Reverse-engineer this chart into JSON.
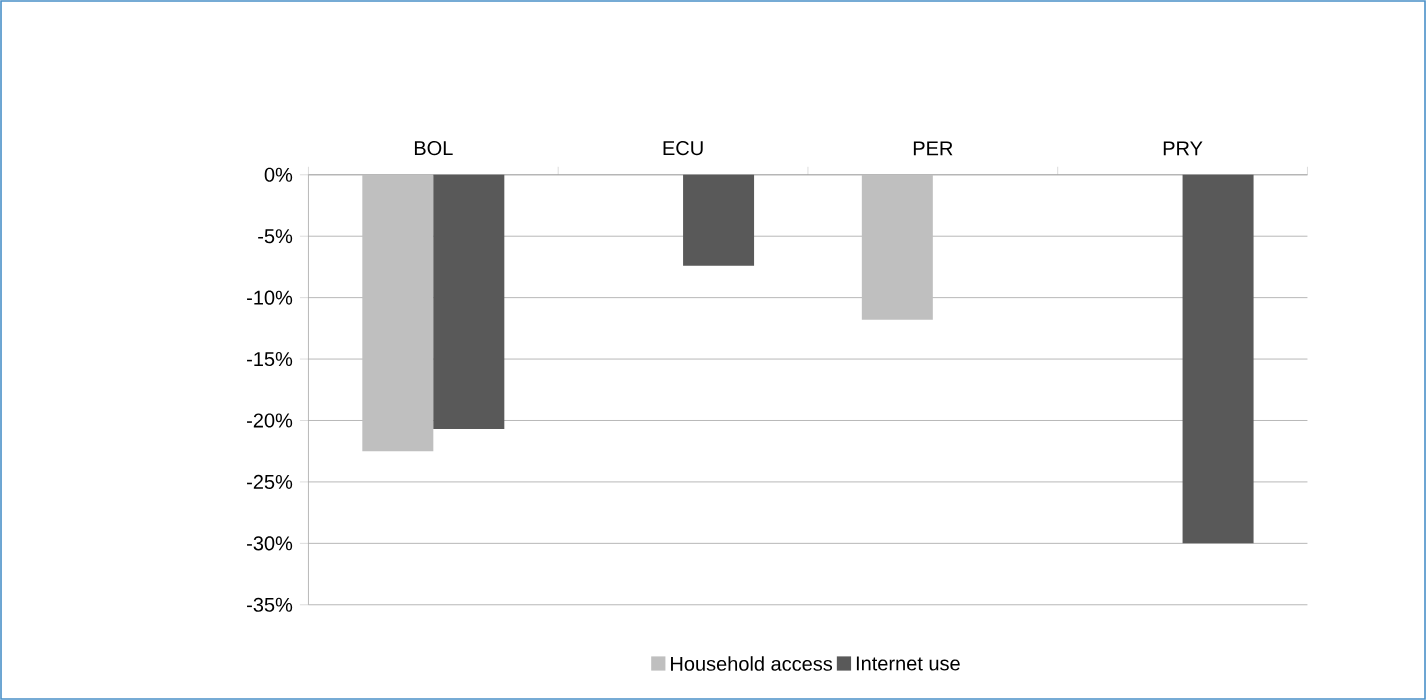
{
  "chart_data": {
    "type": "bar",
    "categories": [
      "BOL",
      "ECU",
      "PER",
      "PRY"
    ],
    "series": [
      {
        "name": "Household access",
        "color": "#bfbfbf",
        "values": [
          -22.5,
          null,
          -11.8,
          null
        ]
      },
      {
        "name": "Internet  use",
        "color": "#595959",
        "values": [
          -20.7,
          -7.4,
          null,
          -30.0
        ]
      }
    ],
    "ylim": [
      -35,
      0
    ],
    "yticks": [
      {
        "value": 0,
        "label": "0%"
      },
      {
        "value": -5,
        "label": "-5%"
      },
      {
        "value": -10,
        "label": "-10%"
      },
      {
        "value": -15,
        "label": "-15%"
      },
      {
        "value": -20,
        "label": "-20%"
      },
      {
        "value": -25,
        "label": "-25%"
      },
      {
        "value": -30,
        "label": "-30%"
      },
      {
        "value": -35,
        "label": "-35%"
      }
    ],
    "grid": "y",
    "legend": "bottom"
  }
}
